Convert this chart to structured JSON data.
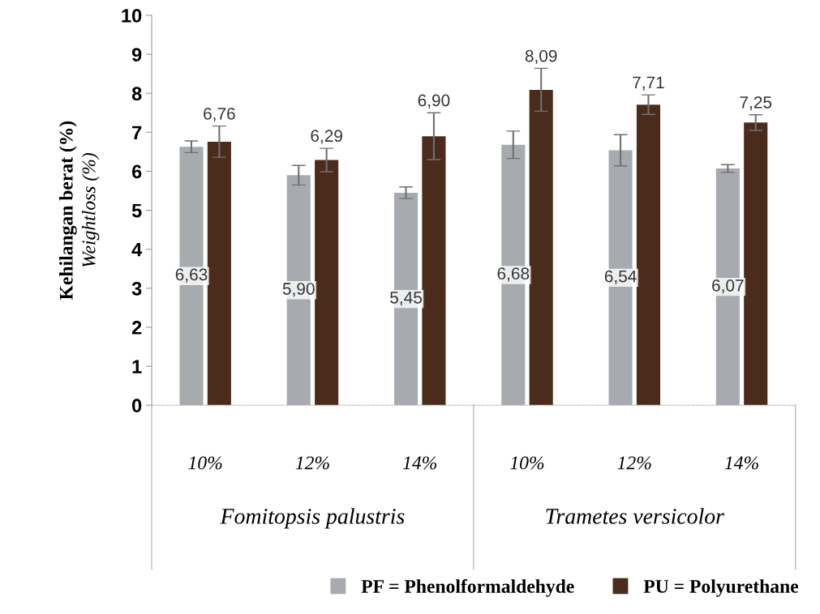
{
  "chart_data": {
    "type": "bar",
    "ylabel": "Kehilangan berat (%)\nWeightloss (%)",
    "categories": [
      "10%",
      "12%",
      "14%",
      "10%",
      "12%",
      "14%"
    ],
    "series": [
      {
        "name": "PF = Phenolformaldehyde",
        "color": "#a7aaae",
        "values": [
          6.63,
          5.9,
          5.45,
          6.68,
          6.54,
          6.07
        ],
        "errors": [
          0.15,
          0.25,
          0.15,
          0.35,
          0.4,
          0.1
        ],
        "value_labels": [
          "6,63",
          "5,90",
          "5,45",
          "6,68",
          "6,54",
          "6,07"
        ]
      },
      {
        "name": "PU = Polyurethane",
        "color": "#4b2c1c",
        "values": [
          6.76,
          6.29,
          6.9,
          8.09,
          7.71,
          7.25
        ],
        "errors": [
          0.4,
          0.3,
          0.6,
          0.55,
          0.25,
          0.2
        ],
        "value_labels": [
          "6,76",
          "6,29",
          "6,90",
          "8,09",
          "7,71",
          "7,25"
        ]
      }
    ],
    "annotations": [
      "Fomitopsis palustris",
      "Trametes versicolor"
    ],
    "ylim": [
      0,
      10
    ],
    "yticks": [
      0,
      1,
      2,
      3,
      4,
      5,
      6,
      7,
      8,
      9,
      10
    ],
    "grid": false,
    "legend": "bottom"
  }
}
